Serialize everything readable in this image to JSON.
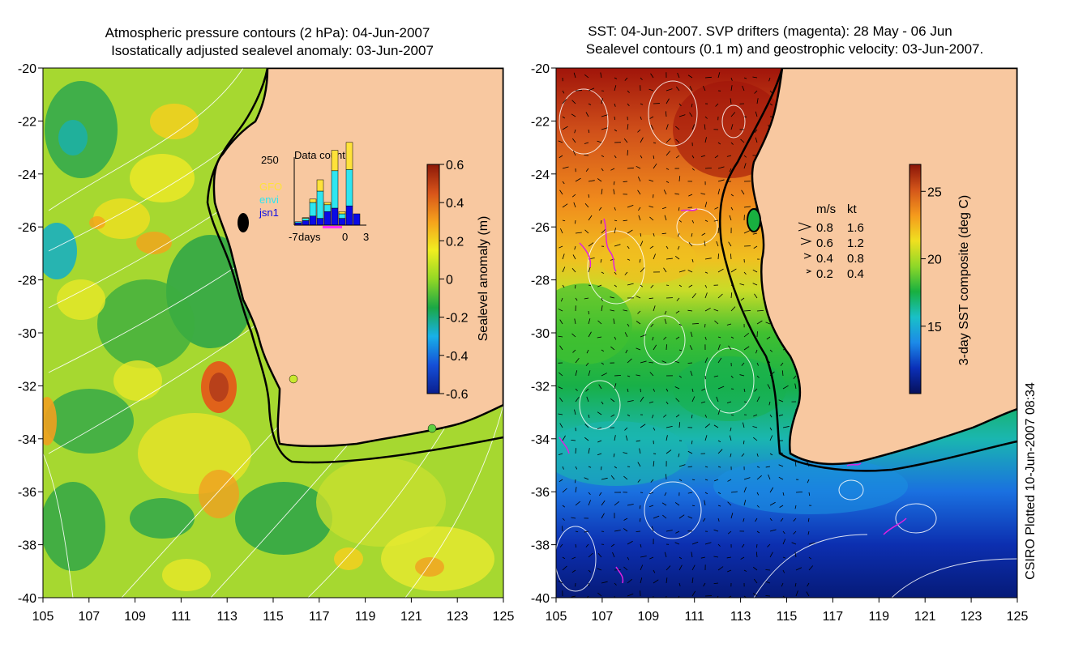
{
  "left_panel": {
    "title_line1": "Atmospheric pressure contours (2 hPa): 04-Jun-2007",
    "title_line2": "Isostatically adjusted sealevel anomaly: 03-Jun-2007",
    "colorbar": {
      "label": "Sealevel anomaly (m)",
      "range": [
        -0.6,
        0.6
      ],
      "ticks": [
        "0.6",
        "0.4",
        "0.2",
        "0",
        "-0.2",
        "-0.4",
        "-0.6"
      ],
      "colors": [
        "#0a1f8f",
        "#1550d8",
        "#18b0e8",
        "#1aa845",
        "#93d825",
        "#f0ee20",
        "#f5a21c",
        "#d8541a",
        "#8c1808"
      ]
    },
    "inset": {
      "title": "Data count",
      "y_tick": "250",
      "legend": [
        "GFO",
        "envi",
        "jsn1"
      ],
      "legend_colors": [
        "#ffe23a",
        "#2ee6f0",
        "#0a0ae6"
      ],
      "x_labels": [
        "-7",
        "days",
        "0",
        "3"
      ],
      "bars": [
        {
          "jsn1": 10,
          "envi": 5,
          "gfo": 0
        },
        {
          "jsn1": 20,
          "envi": 10,
          "gfo": 3
        },
        {
          "jsn1": 40,
          "envi": 60,
          "gfo": 15
        },
        {
          "jsn1": 30,
          "envi": 120,
          "gfo": 50
        },
        {
          "jsn1": 60,
          "envi": 30,
          "gfo": 10
        },
        {
          "jsn1": 75,
          "envi": 165,
          "gfo": 90
        },
        {
          "jsn1": 30,
          "envi": 20,
          "gfo": 10
        },
        {
          "jsn1": 85,
          "envi": 160,
          "gfo": 120
        },
        {
          "jsn1": 50,
          "envi": 0,
          "gfo": 0
        }
      ]
    }
  },
  "right_panel": {
    "title_line1": "SST: 04-Jun-2007. SVP drifters (magenta): 28 May - 06 Jun",
    "title_line2": "Sealevel contours (0.1 m) and geostrophic velocity: 03-Jun-2007.",
    "colorbar": {
      "label": "3-day SST composite (deg C)",
      "range": [
        10,
        27
      ],
      "ticks": [
        "25",
        "20",
        "15"
      ],
      "colors": [
        "#06105a",
        "#0a2fb8",
        "#1c8ae8",
        "#19c0c8",
        "#18b040",
        "#8ed828",
        "#f0e020",
        "#f59a1c",
        "#d4561a",
        "#8a1408"
      ]
    },
    "velocity_legend": {
      "header_ms": "m/s",
      "header_kt": "kt",
      "rows": [
        {
          "ms": "0.8",
          "kt": "1.6"
        },
        {
          "ms": "0.6",
          "kt": "1.2"
        },
        {
          "ms": "0.4",
          "kt": "0.8"
        },
        {
          "ms": "0.2",
          "kt": "0.4"
        }
      ]
    },
    "credit": "CSIRO Plotted 10-Jun-2007 08:34"
  },
  "axes": {
    "x_ticks": [
      "105",
      "107",
      "109",
      "111",
      "113",
      "115",
      "117",
      "119",
      "121",
      "123",
      "125"
    ],
    "y_ticks": [
      "-20",
      "-22",
      "-24",
      "-26",
      "-28",
      "-30",
      "-32",
      "-34",
      "-36",
      "-38",
      "-40"
    ],
    "lon_range": [
      105,
      125
    ],
    "lat_range": [
      -40,
      -20
    ]
  },
  "colors": {
    "land": "#f8c8a0",
    "coast": "#000000",
    "contour": "#ffffff",
    "drifter": "#e020e0",
    "station": "#80e040"
  }
}
